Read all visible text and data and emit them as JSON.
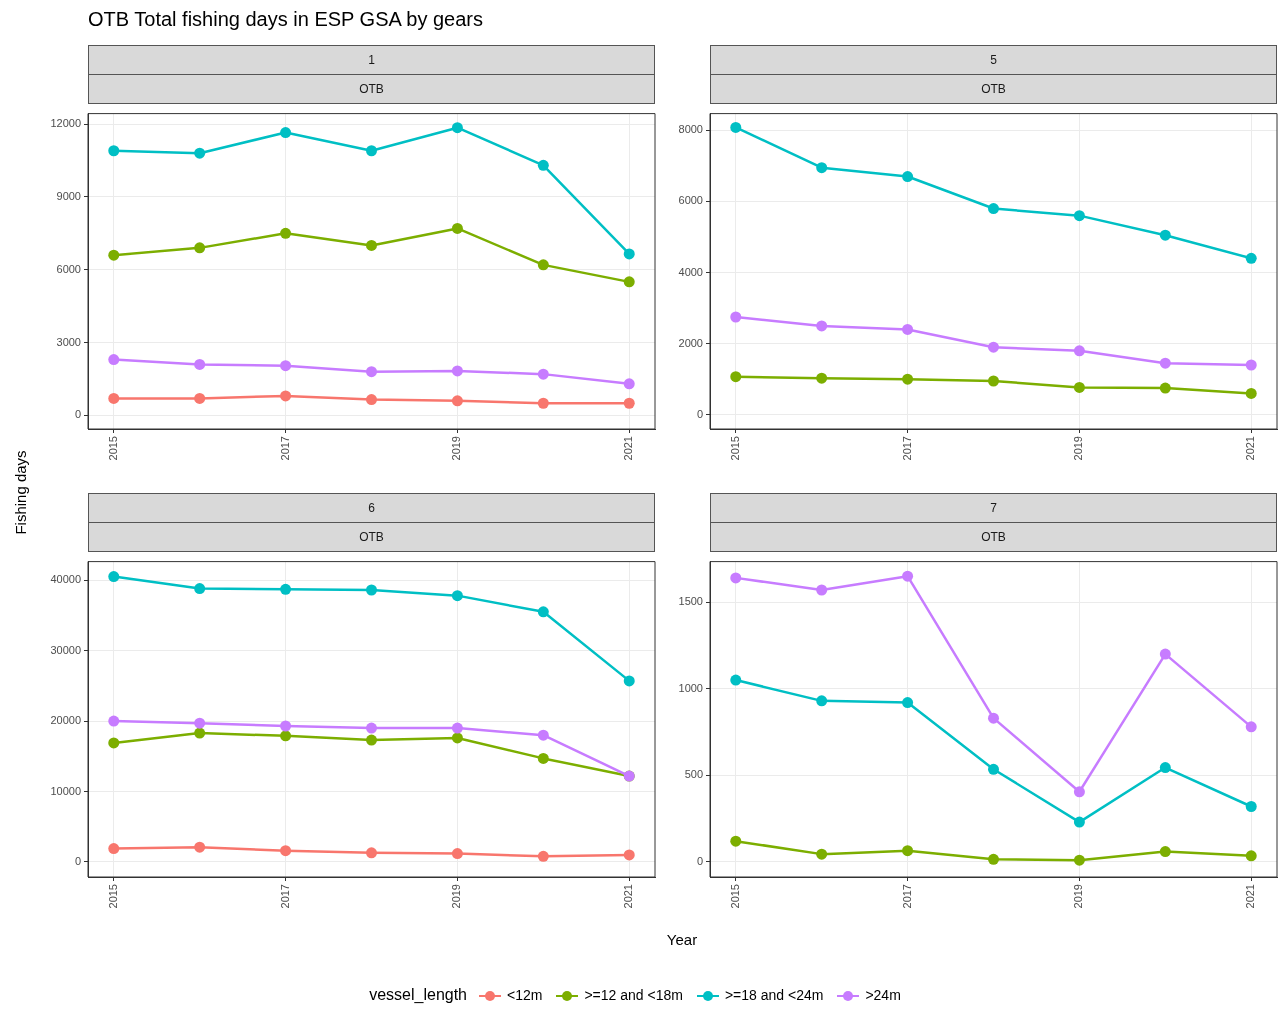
{
  "chart_data": [
    {
      "type": "line",
      "annotations": [
        "OTB Total fishing days in ESP GSA by gears"
      ],
      "xlabel": "Year",
      "ylabel": "Fishing days",
      "legend_title": "vessel_length",
      "legend": "bottom",
      "grid": true,
      "marker": "circle",
      "title": "1",
      "subtitle": "OTB",
      "x": [
        2015,
        2016,
        2017,
        2018,
        2019,
        2020,
        2021
      ],
      "xlim": [
        2014.7,
        2021.3
      ],
      "xticks": [
        2015,
        2017,
        2019,
        2021
      ],
      "ylim": [
        -560,
        12430
      ],
      "yticks": [
        0,
        3000,
        6000,
        9000,
        12000
      ],
      "series": [
        {
          "name": "<12m",
          "color": "#f8766d",
          "values": [
            700,
            700,
            800,
            650,
            600,
            500,
            500
          ]
        },
        {
          "name": ">=12 and <18m",
          "color": "#7cae00",
          "values": [
            6600,
            6900,
            7500,
            7000,
            7700,
            6200,
            5500
          ]
        },
        {
          "name": ">=18 and <24m",
          "color": "#00bfc4",
          "values": [
            10900,
            10800,
            11650,
            10900,
            11850,
            10300,
            6650
          ]
        },
        {
          "name": ">24m",
          "color": "#c77cff",
          "values": [
            2300,
            2100,
            2050,
            1800,
            1830,
            1700,
            1300
          ]
        }
      ]
    },
    {
      "type": "line",
      "grid": true,
      "marker": "circle",
      "title": "5",
      "subtitle": "OTB",
      "x": [
        2015,
        2016,
        2017,
        2018,
        2019,
        2020,
        2021
      ],
      "xlim": [
        2014.7,
        2021.3
      ],
      "xticks": [
        2015,
        2017,
        2019,
        2021
      ],
      "ylim": [
        -400,
        8470
      ],
      "yticks": [
        0,
        2000,
        4000,
        6000,
        8000
      ],
      "series": [
        {
          "name": ">=12 and <18m",
          "color": "#7cae00",
          "values": [
            1070,
            1030,
            1000,
            950,
            770,
            750,
            600
          ]
        },
        {
          "name": ">=18 and <24m",
          "color": "#00bfc4",
          "values": [
            8080,
            6950,
            6700,
            5800,
            5600,
            5050,
            4400
          ]
        },
        {
          "name": ">24m",
          "color": "#c77cff",
          "values": [
            2750,
            2500,
            2400,
            1900,
            1800,
            1450,
            1400
          ]
        }
      ]
    },
    {
      "type": "line",
      "grid": true,
      "marker": "circle",
      "title": "6",
      "subtitle": "OTB",
      "x": [
        2015,
        2016,
        2017,
        2018,
        2019,
        2020,
        2021
      ],
      "xlim": [
        2014.7,
        2021.3
      ],
      "xticks": [
        2015,
        2017,
        2019,
        2021
      ],
      "ylim": [
        -2130,
        42630
      ],
      "yticks": [
        0,
        10000,
        20000,
        30000,
        40000
      ],
      "series": [
        {
          "name": "<12m",
          "color": "#f8766d",
          "values": [
            1900,
            2100,
            1600,
            1300,
            1200,
            800,
            1000
          ]
        },
        {
          "name": ">=12 and <18m",
          "color": "#7cae00",
          "values": [
            16900,
            18300,
            17900,
            17300,
            17600,
            14700,
            12200
          ]
        },
        {
          "name": ">=18 and <24m",
          "color": "#00bfc4",
          "values": [
            40500,
            38800,
            38700,
            38600,
            37800,
            35500,
            25700
          ]
        },
        {
          "name": ">24m",
          "color": "#c77cff",
          "values": [
            20000,
            19700,
            19300,
            19000,
            19000,
            18000,
            12200
          ]
        }
      ]
    },
    {
      "type": "line",
      "grid": true,
      "marker": "circle",
      "title": "7",
      "subtitle": "OTB",
      "x": [
        2015,
        2016,
        2017,
        2018,
        2019,
        2020,
        2021
      ],
      "xlim": [
        2014.7,
        2021.3
      ],
      "xticks": [
        2015,
        2017,
        2019,
        2021
      ],
      "ylim": [
        -87,
        1734
      ],
      "yticks": [
        0,
        500,
        1000,
        1500
      ],
      "series": [
        {
          "name": ">=12 and <18m",
          "color": "#7cae00",
          "values": [
            120,
            45,
            65,
            15,
            10,
            60,
            35
          ]
        },
        {
          "name": ">=18 and <24m",
          "color": "#00bfc4",
          "values": [
            1050,
            930,
            920,
            535,
            230,
            545,
            320
          ]
        },
        {
          "name": ">24m",
          "color": "#c77cff",
          "values": [
            1640,
            1570,
            1650,
            830,
            405,
            1200,
            780
          ]
        }
      ]
    }
  ]
}
